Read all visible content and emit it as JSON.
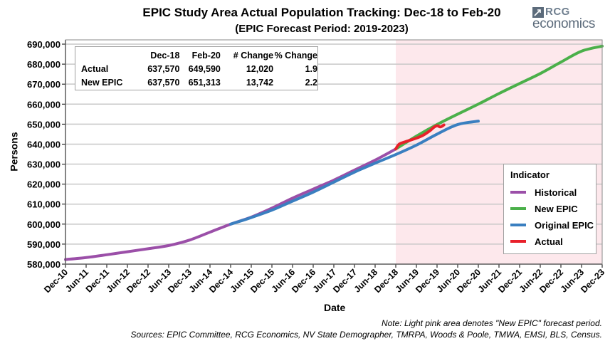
{
  "header": {
    "title": "EPIC Study Area Actual Population Tracking: Dec-18 to Feb-20",
    "subtitle": "(EPIC Forecast Period: 2019-2023)",
    "logo_top": "RCG",
    "logo_bottom": "economics"
  },
  "summary_table": {
    "columns": [
      "",
      "Dec-18",
      "Feb-20",
      "# Change",
      "% Change"
    ],
    "rows": [
      {
        "label": "Actual",
        "dec18": "637,570",
        "feb20": "649,590",
        "change": "12,020",
        "pct": "1.9"
      },
      {
        "label": "New EPIC",
        "dec18": "637,570",
        "feb20": "651,313",
        "change": "13,742",
        "pct": "2.2"
      }
    ]
  },
  "notes": {
    "note": "Note: Light pink area denotes \"New EPIC\" forecast period.",
    "sources": "Sources: EPIC Committee, RCG Economics, NV State Demographer, TMRPA, Woods & Poole, TMWA, EMSI, BLS, Census."
  },
  "colors": {
    "historical": "#9b4fa8",
    "new_epic": "#4bb04a",
    "original_epic": "#3a7fc0",
    "actual": "#e8202a",
    "forecast_band": "#fde8ec",
    "grid": "#c8c8c8"
  },
  "chart_data": {
    "type": "line",
    "title": "EPIC Study Area Actual Population Tracking: Dec-18 to Feb-20",
    "subtitle": "(EPIC Forecast Period: 2019-2023)",
    "xlabel": "Date",
    "ylabel": "Persons",
    "ylim": [
      580000,
      690000
    ],
    "yticks": [
      580000,
      590000,
      600000,
      610000,
      620000,
      630000,
      640000,
      650000,
      660000,
      670000,
      680000,
      690000
    ],
    "ytick_labels": [
      "580,000",
      "590,000",
      "600,000",
      "610,000",
      "620,000",
      "630,000",
      "640,000",
      "650,000",
      "660,000",
      "670,000",
      "680,000",
      "690,000"
    ],
    "xlim_years_from_dec10": [
      0,
      13
    ],
    "xtick_labels": [
      "Dec-10",
      "Jun-11",
      "Dec-11",
      "Jun-12",
      "Dec-12",
      "Jun-13",
      "Dec-13",
      "Jun-14",
      "Dec-14",
      "Jun-15",
      "Dec-15",
      "Jun-16",
      "Dec-16",
      "Jun-17",
      "Dec-17",
      "Jun-18",
      "Dec-18",
      "Jun-19",
      "Dec-19",
      "Jun-20",
      "Dec-20",
      "Jun-21",
      "Dec-21",
      "Jun-22",
      "Dec-22",
      "Jun-23",
      "Dec-23"
    ],
    "grid": true,
    "legend_title": "Indicator",
    "legend_position": "right",
    "forecast_band": {
      "from": "Dec-18",
      "to": "Dec-23",
      "label": "New EPIC forecast period"
    },
    "series": [
      {
        "name": "Historical",
        "color": "#9b4fa8",
        "points": [
          [
            "Dec-10",
            582300
          ],
          [
            "Jun-11",
            583300
          ],
          [
            "Dec-11",
            584700
          ],
          [
            "Jun-12",
            586200
          ],
          [
            "Dec-12",
            587700
          ],
          [
            "Jun-13",
            589300
          ],
          [
            "Dec-13",
            592000
          ],
          [
            "Jun-14",
            596000
          ],
          [
            "Dec-14",
            600000
          ],
          [
            "Jun-15",
            603500
          ],
          [
            "Dec-15",
            608000
          ],
          [
            "Jun-16",
            613000
          ],
          [
            "Dec-16",
            617500
          ],
          [
            "Jun-17",
            622000
          ],
          [
            "Dec-17",
            627000
          ],
          [
            "Jun-18",
            632000
          ],
          [
            "Dec-18",
            637570
          ]
        ]
      },
      {
        "name": "New EPIC",
        "color": "#4bb04a",
        "points": [
          [
            "Dec-18",
            637570
          ],
          [
            "Jun-19",
            644000
          ],
          [
            "Dec-19",
            649800
          ],
          [
            "Jun-20",
            655000
          ],
          [
            "Dec-20",
            660000
          ],
          [
            "Jun-21",
            665300
          ],
          [
            "Dec-21",
            670300
          ],
          [
            "Jun-22",
            675300
          ],
          [
            "Dec-22",
            681000
          ],
          [
            "Jun-23",
            686500
          ],
          [
            "Dec-23",
            689000
          ]
        ]
      },
      {
        "name": "Original EPIC",
        "color": "#3a7fc0",
        "points": [
          [
            "Dec-14",
            600000
          ],
          [
            "Jun-15",
            603300
          ],
          [
            "Dec-15",
            607000
          ],
          [
            "Jun-16",
            611500
          ],
          [
            "Dec-16",
            616000
          ],
          [
            "Jun-17",
            621000
          ],
          [
            "Dec-17",
            626000
          ],
          [
            "Jun-18",
            630500
          ],
          [
            "Dec-18",
            634800
          ],
          [
            "Jun-19",
            639500
          ],
          [
            "Dec-19",
            645000
          ],
          [
            "Jun-20",
            649800
          ],
          [
            "Dec-20",
            651500
          ]
        ]
      },
      {
        "name": "Actual",
        "color": "#e8202a",
        "points": [
          [
            "Dec-18",
            637570
          ],
          [
            "Jan-19",
            640000
          ],
          [
            "Mar-19",
            641300
          ],
          [
            "Jun-19",
            643000
          ],
          [
            "Aug-19",
            644500
          ],
          [
            "Oct-19",
            646800
          ],
          [
            "Nov-19",
            648300
          ],
          [
            "Dec-19",
            649200
          ],
          [
            "Jan-20",
            648600
          ],
          [
            "Feb-20",
            649590
          ]
        ]
      }
    ]
  }
}
